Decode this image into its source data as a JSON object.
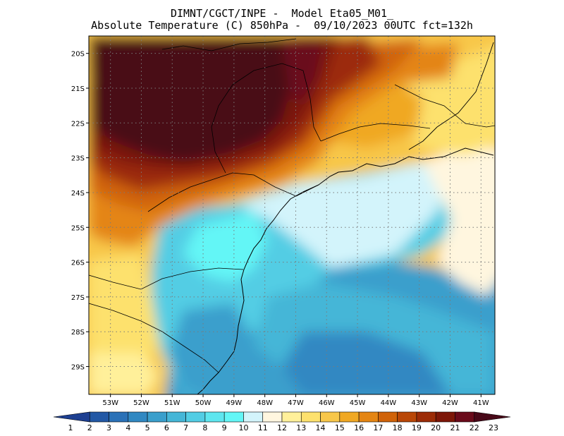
{
  "title": {
    "line1": "DIMNT/CGCT/INPE -  Model Eta05_M01_",
    "line2": "Absolute Temperature (C) 850hPa -  09/10/2023 00UTC fct=132h"
  },
  "map": {
    "lat_labels": [
      "20S",
      "21S",
      "22S",
      "23S",
      "24S",
      "25S",
      "26S",
      "27S",
      "28S",
      "29S"
    ],
    "lon_labels": [
      "53W",
      "52W",
      "51W",
      "50W",
      "49W",
      "48W",
      "47W",
      "46W",
      "45W",
      "44W",
      "43W",
      "42W",
      "41W"
    ],
    "grid": true
  },
  "colorbar": {
    "labels": [
      "1",
      "2",
      "3",
      "4",
      "5",
      "6",
      "7",
      "8",
      "9",
      "10",
      "11",
      "12",
      "13",
      "14",
      "15",
      "16",
      "17",
      "18",
      "19",
      "20",
      "21",
      "22",
      "23"
    ],
    "colors": [
      "#1d3f91",
      "#2258a5",
      "#2a71b7",
      "#3088c2",
      "#3a9fcc",
      "#45b6d7",
      "#52cde4",
      "#5ee6ef",
      "#63f6f6",
      "#d3f4fb",
      "#fff6df",
      "#fff09a",
      "#fde16d",
      "#f8c74a",
      "#f0a823",
      "#e48513",
      "#d06309",
      "#b94707",
      "#9c2c07",
      "#7d1708",
      "#6a0b1b",
      "#480818"
    ]
  }
}
